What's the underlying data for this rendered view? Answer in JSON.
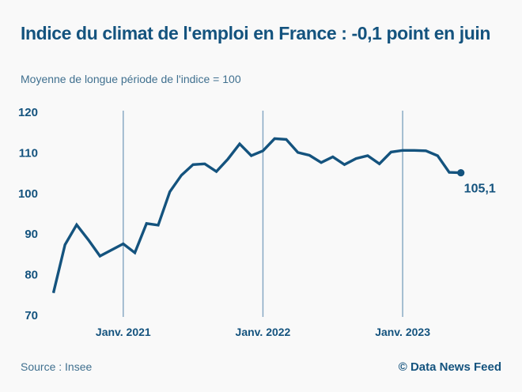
{
  "header": {
    "title": "Indice du climat de l'emploi en France : -0,1 point en juin",
    "subtitle": "Moyenne de longue période de l'indice = 100"
  },
  "footer": {
    "source": "Source : Insee",
    "credit": "© Data News Feed"
  },
  "colors": {
    "navy": "#14537e",
    "slate": "#40708f",
    "gridline": "#82a4c0",
    "background": "#f9f9f9"
  },
  "chart_data": {
    "type": "line",
    "title": "Indice du climat de l'emploi en France : -0,1 point en juin",
    "subtitle": "Moyenne de longue période de l'indice = 100",
    "x": [
      "2020-07",
      "2020-08",
      "2020-09",
      "2020-10",
      "2020-11",
      "2020-12",
      "2021-01",
      "2021-02",
      "2021-03",
      "2021-04",
      "2021-05",
      "2021-06",
      "2021-07",
      "2021-08",
      "2021-09",
      "2021-10",
      "2021-11",
      "2021-12",
      "2022-01",
      "2022-02",
      "2022-03",
      "2022-04",
      "2022-05",
      "2022-06",
      "2022-07",
      "2022-08",
      "2022-09",
      "2022-10",
      "2022-11",
      "2022-12",
      "2023-01",
      "2023-02",
      "2023-03",
      "2023-04",
      "2023-05",
      "2023-06"
    ],
    "values": [
      75.5,
      87.4,
      92.3,
      88.6,
      84.6,
      86.1,
      87.6,
      85.4,
      92.6,
      92.2,
      100.4,
      104.5,
      107.1,
      107.3,
      105.4,
      108.5,
      112.2,
      109.3,
      110.5,
      113.5,
      113.3,
      110.1,
      109.4,
      107.6,
      109.0,
      107.1,
      108.6,
      109.3,
      107.3,
      110.2,
      110.6,
      110.6,
      110.5,
      109.3,
      105.2,
      105.1
    ],
    "y_ticks": [
      120,
      110,
      100,
      90,
      80,
      70
    ],
    "ylim": [
      70,
      120
    ],
    "x_gridlines": [
      {
        "index": 6,
        "label": "Janv. 2021"
      },
      {
        "index": 18,
        "label": "Janv. 2022"
      },
      {
        "index": 30,
        "label": "Janv. 2023"
      }
    ],
    "end_label": "105,1",
    "grid": "vertical-only",
    "legend": "none"
  }
}
